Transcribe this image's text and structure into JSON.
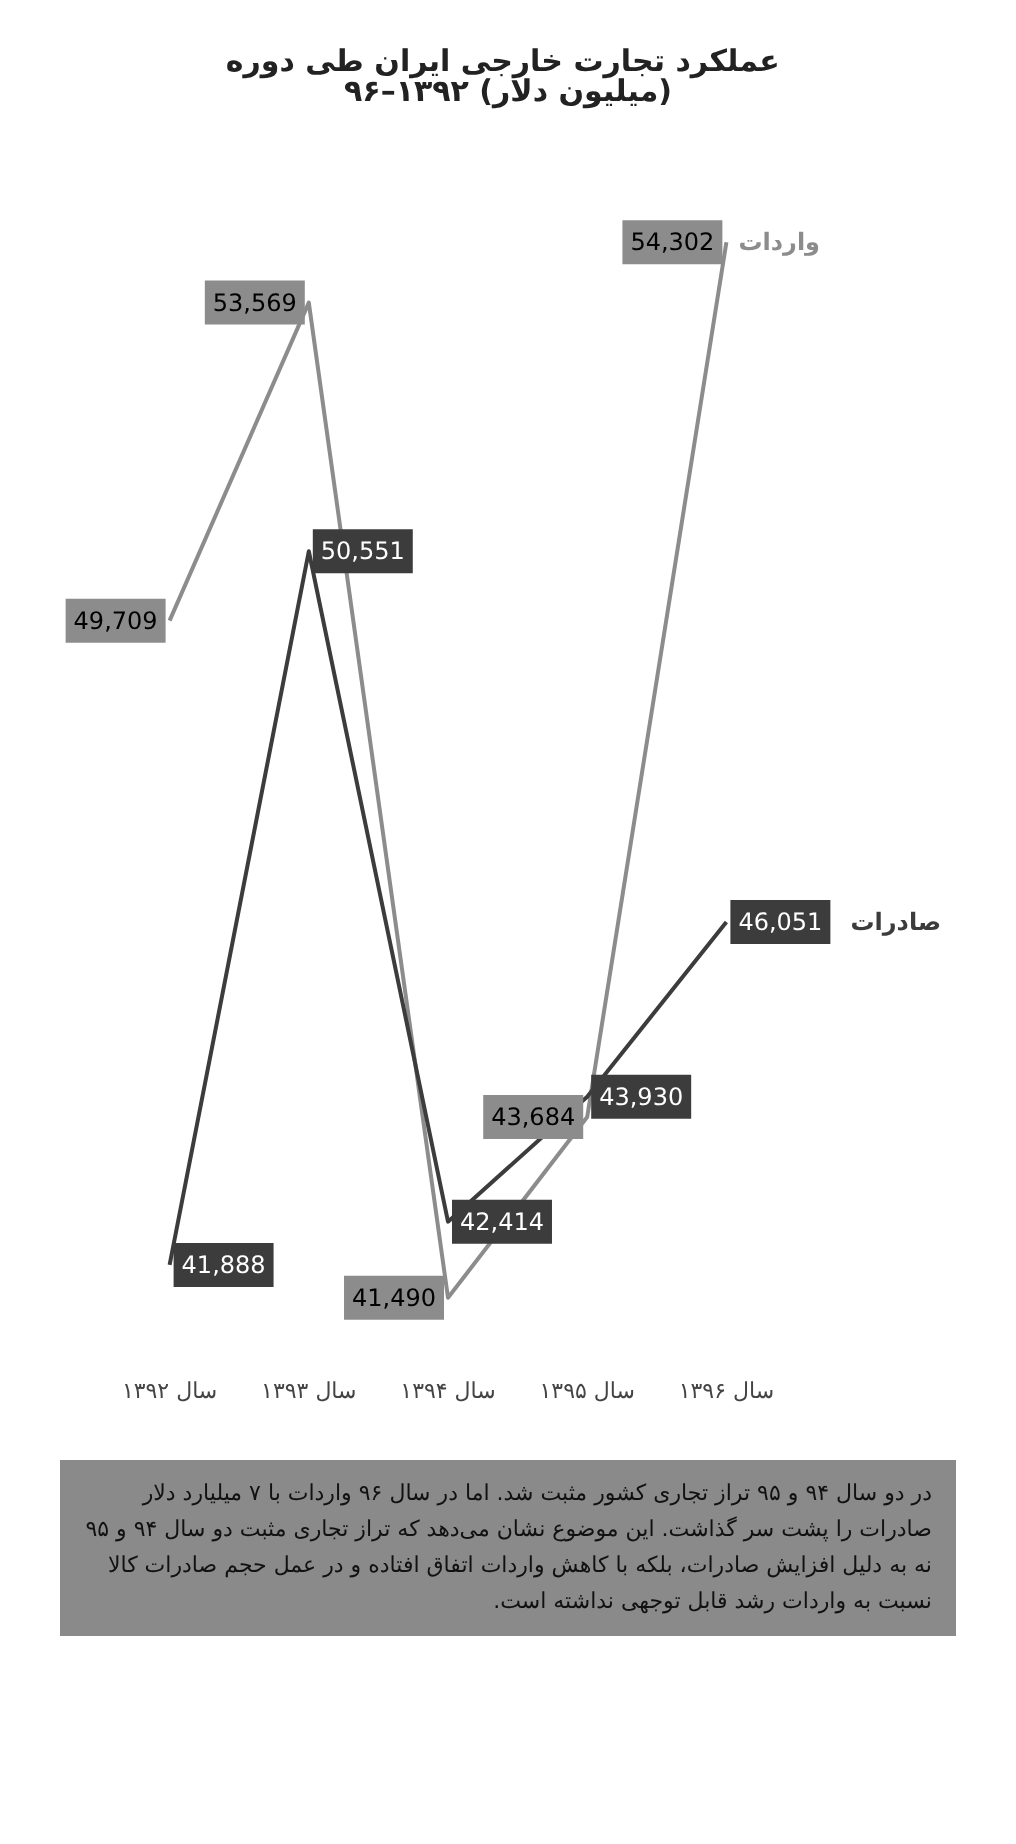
{
  "chart_data": {
    "type": "line",
    "title": "عملکرد تجارت خارجی ایران طی دوره ۹۶–۱۳۹۲ (میلیون دلار)",
    "categories": [
      "سال ۱۳۹۲",
      "سال ۱۳۹۳",
      "سال ۱۳۹۴",
      "سال ۱۳۹۵",
      "سال ۱۳۹۶"
    ],
    "series": [
      {
        "name": "واردات",
        "color": "#8c8c8c",
        "values": [
          49709,
          53569,
          41490,
          43684,
          54302
        ],
        "value_labels": [
          "49,709",
          "53,569",
          "41,490",
          "43,684",
          "54,302"
        ]
      },
      {
        "name": "صادرات",
        "color": "#3c3c3c",
        "values": [
          41888,
          50551,
          42414,
          43930,
          46051
        ],
        "value_labels": [
          "41,888",
          "50,551",
          "42,414",
          "43,930",
          "46,051"
        ]
      }
    ],
    "marker": "none",
    "legend": "right",
    "grid": false,
    "annotations": [
      "در دو سال ۹۴ و ۹۵ تراز تجاری کشور مثبت شد. اما در سال ۹۶ واردات با ۷ میلیارد دلار صادرات را پشت سر گذاشت. این موضوع نشان می‌دهد که تراز تجاری مثبت دو سال ۹۴ و ۹۵ نه به دلیل افزایش صادرات، بلکه با کاهش واردات اتفاق افتاده و در عمل حجم صادرات کالا نسبت به واردات رشد قابل توجهی نداشته است."
    ]
  }
}
